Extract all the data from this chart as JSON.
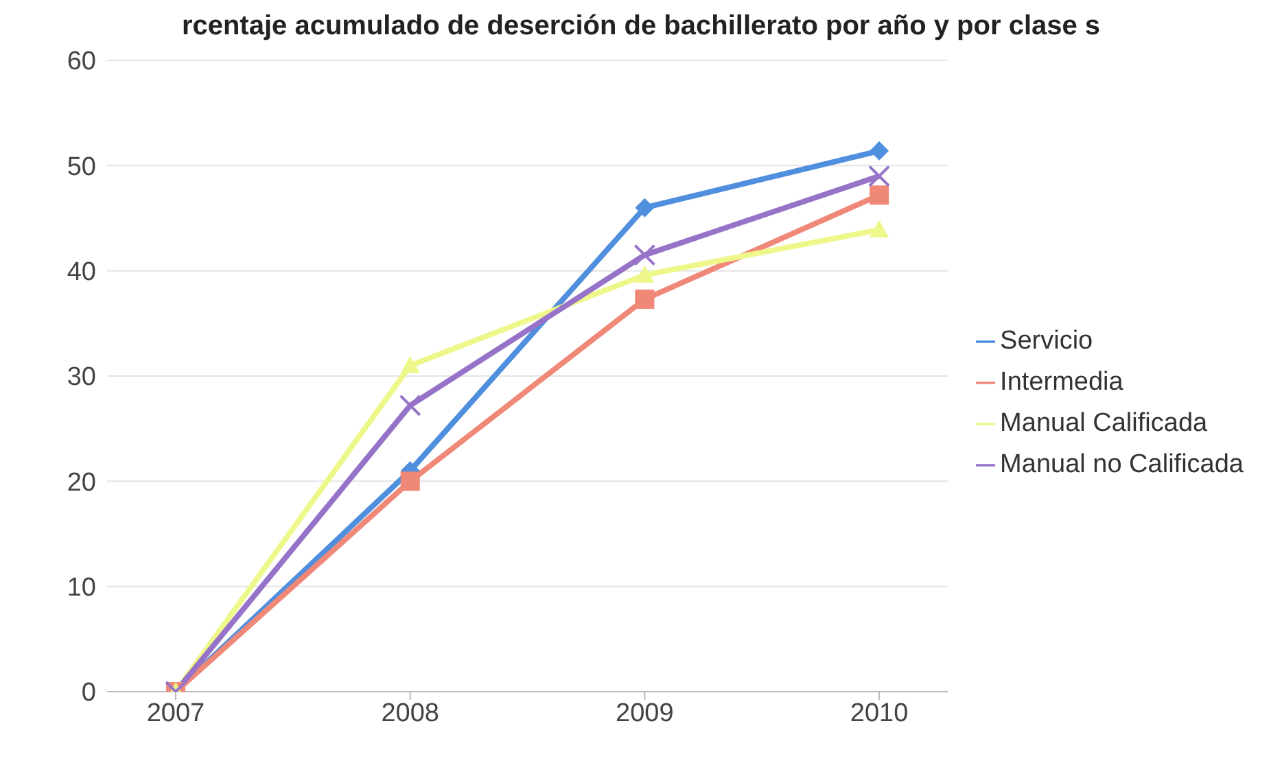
{
  "chart_data": {
    "type": "line",
    "title": "rcentaje acumulado de deserción de bachillerato por año y por clase s",
    "categories": [
      "2007",
      "2008",
      "2009",
      "2010"
    ],
    "series": [
      {
        "name": "Servicio",
        "color": "#4f8fde",
        "marker": "diamond",
        "values": [
          0,
          21,
          46,
          51.4
        ]
      },
      {
        "name": "Intermedia",
        "color": "#f08878",
        "marker": "square",
        "values": [
          0,
          20,
          37.3,
          47.2
        ]
      },
      {
        "name": "Manual Calificada",
        "color": "#eef88a",
        "marker": "triangle",
        "values": [
          0,
          31,
          39.6,
          43.9
        ]
      },
      {
        "name": "Manual no Calificada",
        "color": "#9673c8",
        "marker": "cross",
        "values": [
          0,
          27.2,
          41.5,
          49
        ]
      }
    ],
    "ylim": [
      0,
      60
    ],
    "yticks": [
      0,
      10,
      20,
      30,
      40,
      50,
      60
    ],
    "grid": "y",
    "legend": "right"
  }
}
